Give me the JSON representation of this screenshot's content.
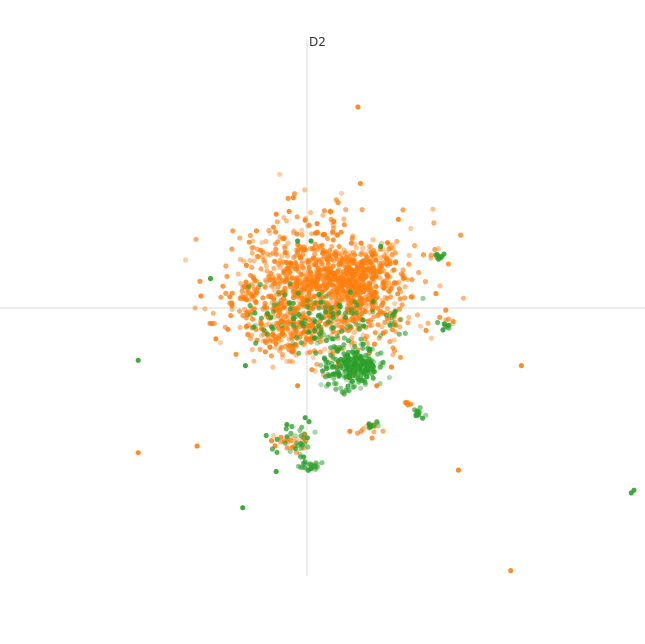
{
  "chart_data": {
    "type": "scatter",
    "title": "",
    "xlabel": "",
    "ylabel": "D2",
    "xlim": [
      -2.4,
      2.6
    ],
    "ylim": [
      -2.0,
      2.0
    ],
    "grid": false,
    "legend": "none",
    "colors": {
      "orange": "#ff7f0e",
      "green": "#2ca02c",
      "axis": "#e6e6e6"
    },
    "series": [
      {
        "color": "#ff7f0e",
        "clusters": [
          {
            "cx": 0.12,
            "cy": 0.16,
            "sx": 0.33,
            "sy": 0.24,
            "n": 1100
          },
          {
            "cx": 0.38,
            "cy": 0.22,
            "sx": 0.14,
            "sy": 0.1,
            "n": 180
          },
          {
            "cx": -0.18,
            "cy": -0.18,
            "sx": 0.12,
            "sy": 0.09,
            "n": 120
          },
          {
            "cx": -0.45,
            "cy": 0.1,
            "sx": 0.04,
            "sy": 0.04,
            "n": 18
          },
          {
            "cx": -0.12,
            "cy": -1.0,
            "sx": 0.07,
            "sy": 0.04,
            "n": 25
          },
          {
            "cx": 0.48,
            "cy": -0.9,
            "sx": 0.04,
            "sy": 0.03,
            "n": 12
          },
          {
            "cx": 0.97,
            "cy": 0.39,
            "sx": 0.04,
            "sy": 0.03,
            "n": 10
          },
          {
            "cx": 0.75,
            "cy": -0.72,
            "sx": 0.02,
            "sy": 0.02,
            "n": 5
          },
          {
            "cx": 1.06,
            "cy": -0.11,
            "sx": 0.02,
            "sy": 0.02,
            "n": 5
          }
        ],
        "points": [
          [
            0.38,
            1.5
          ],
          [
            -1.26,
            -1.08
          ],
          [
            -0.82,
            -1.03
          ],
          [
            1.6,
            -0.43
          ],
          [
            1.13,
            -1.21
          ],
          [
            1.52,
            -1.96
          ],
          [
            0.13,
            0.55
          ],
          [
            -0.68,
            -0.23
          ],
          [
            0.32,
            -0.92
          ],
          [
            0.52,
            -0.58
          ],
          [
            0.63,
            -0.44
          ],
          [
            -0.07,
            -0.58
          ]
        ]
      },
      {
        "color": "#2ca02c",
        "clusters": [
          {
            "cx": 0.35,
            "cy": -0.43,
            "sx": 0.11,
            "sy": 0.08,
            "n": 240
          },
          {
            "cx": 0.05,
            "cy": -0.08,
            "sx": 0.28,
            "sy": 0.12,
            "n": 120
          },
          {
            "cx": -0.08,
            "cy": -0.98,
            "sx": 0.07,
            "sy": 0.06,
            "n": 30
          },
          {
            "cx": 0.0,
            "cy": -1.17,
            "sx": 0.04,
            "sy": 0.03,
            "n": 22
          },
          {
            "cx": 0.48,
            "cy": -0.89,
            "sx": 0.03,
            "sy": 0.02,
            "n": 10
          },
          {
            "cx": 0.83,
            "cy": -0.79,
            "sx": 0.03,
            "sy": 0.02,
            "n": 10
          },
          {
            "cx": 0.98,
            "cy": 0.39,
            "sx": 0.03,
            "sy": 0.02,
            "n": 8
          },
          {
            "cx": 1.04,
            "cy": -0.14,
            "sx": 0.03,
            "sy": 0.02,
            "n": 8
          },
          {
            "cx": 0.65,
            "cy": -0.1,
            "sx": 0.04,
            "sy": 0.05,
            "n": 10
          }
        ],
        "points": [
          [
            -1.26,
            -0.39
          ],
          [
            -0.48,
            -1.49
          ],
          [
            2.42,
            -1.38
          ],
          [
            2.44,
            -1.36
          ],
          [
            -0.23,
            -1.22
          ],
          [
            -0.15,
            -0.87
          ],
          [
            0.55,
            0.46
          ],
          [
            -0.07,
            0.5
          ],
          [
            0.03,
            0.5
          ],
          [
            -0.72,
            0.22
          ],
          [
            -0.46,
            -0.43
          ]
        ]
      }
    ]
  }
}
